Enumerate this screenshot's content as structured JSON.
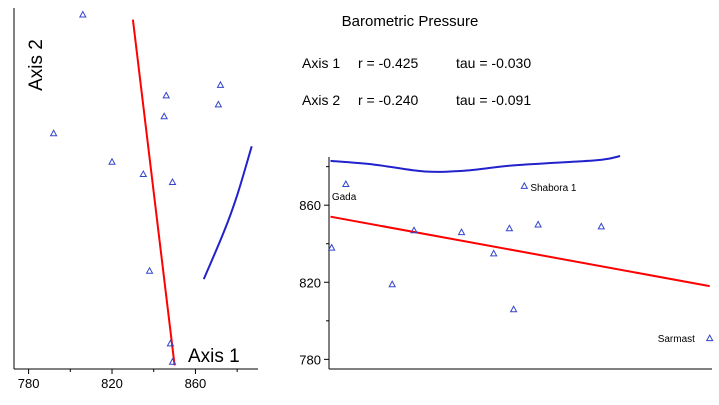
{
  "chart_data": [
    {
      "type": "scatter",
      "panel": "left",
      "title": "",
      "xlabel": "Axis 1",
      "ylabel": "Axis 2",
      "xlim": [
        773,
        890
      ],
      "ylim": [
        0,
        1
      ],
      "x_ticks": [
        "780",
        "820",
        "860"
      ],
      "y_ticks": [],
      "grid": false,
      "marker": "open-triangle",
      "point_color": "#3344cc",
      "points": [
        {
          "x": 806,
          "y": 0.982
        },
        {
          "x": 792,
          "y": 0.653
        },
        {
          "x": 820,
          "y": 0.574
        },
        {
          "x": 835,
          "y": 0.54
        },
        {
          "x": 849,
          "y": 0.518
        },
        {
          "x": 846,
          "y": 0.758
        },
        {
          "x": 845,
          "y": 0.7
        },
        {
          "x": 872,
          "y": 0.787
        },
        {
          "x": 871,
          "y": 0.733
        },
        {
          "x": 838,
          "y": 0.272
        },
        {
          "x": 848,
          "y": 0.071
        },
        {
          "x": 849,
          "y": 0.02
        }
      ],
      "series": [
        {
          "color": "#ff0000",
          "x": [
            830,
            850
          ],
          "y": [
            0.968,
            0.01
          ]
        },
        {
          "color": "#2222cc",
          "x": [
            864,
            874,
            880,
            887
          ],
          "y": [
            0.249,
            0.385,
            0.481,
            0.617
          ]
        }
      ]
    },
    {
      "type": "scatter",
      "panel": "right",
      "title": "Barometric Pressure",
      "stats": [
        {
          "axis": "Axis 1",
          "r": "r = -0.425",
          "tau": "tau = -0.030"
        },
        {
          "axis": "Axis 2",
          "r": "r = -0.240",
          "tau": "tau = -0.091"
        }
      ],
      "xlabel": "",
      "ylabel": "",
      "xlim": [
        0,
        1
      ],
      "ylim": [
        775,
        885
      ],
      "x_ticks": [],
      "y_ticks": [
        "860",
        "820",
        "780"
      ],
      "grid": false,
      "marker": "open-triangle",
      "point_color": "#3344cc",
      "points": [
        {
          "x": 0.044,
          "y": 871,
          "label": "Gada"
        },
        {
          "x": 0.007,
          "y": 838
        },
        {
          "x": 0.165,
          "y": 819
        },
        {
          "x": 0.222,
          "y": 847
        },
        {
          "x": 0.346,
          "y": 846
        },
        {
          "x": 0.43,
          "y": 835
        },
        {
          "x": 0.471,
          "y": 848
        },
        {
          "x": 0.482,
          "y": 806
        },
        {
          "x": 0.51,
          "y": 870,
          "label": "Shabora 1"
        },
        {
          "x": 0.546,
          "y": 850
        },
        {
          "x": 0.711,
          "y": 849
        },
        {
          "x": 0.994,
          "y": 791,
          "label": "Sarmast"
        }
      ],
      "series": [
        {
          "color": "#ff0000",
          "x": [
            0.004,
            0.994
          ],
          "y": [
            854,
            818
          ]
        },
        {
          "color": "#2222cc",
          "x": [
            0.004,
            0.12,
            0.25,
            0.36,
            0.47,
            0.59,
            0.71,
            0.76
          ],
          "y": [
            883,
            881,
            877.5,
            878,
            880.5,
            882,
            883.5,
            885.5
          ]
        }
      ]
    }
  ]
}
